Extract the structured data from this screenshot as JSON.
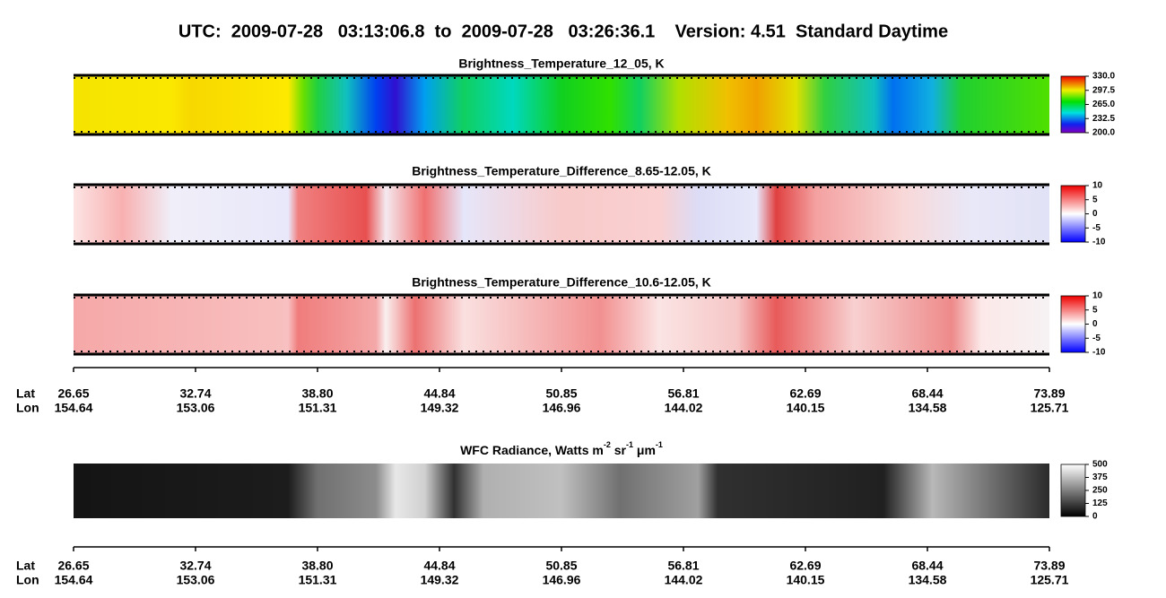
{
  "title": "UTC:  2009-07-28   03:13:06.8  to  2009-07-28   03:26:36.1    Version: 4.51  Standard Daytime",
  "panels": [
    {
      "title": "Brightness_Temperature_12_05, K",
      "colorbar": {
        "lim": [
          200,
          330
        ],
        "ticks": [
          {
            "value": 330,
            "label": "330.0"
          },
          {
            "value": 297.5,
            "label": "297.5"
          },
          {
            "value": 265,
            "label": "265.0"
          },
          {
            "value": 232.5,
            "label": "232.5"
          },
          {
            "value": 200,
            "label": "200.0"
          }
        ]
      }
    },
    {
      "title": "Brightness_Temperature_Difference_8.65-12.05, K",
      "colorbar": {
        "lim": [
          -10,
          10
        ],
        "ticks": [
          10,
          5,
          0,
          -5,
          -10
        ]
      }
    },
    {
      "title": "Brightness_Temperature_Difference_10.6-12.05, K",
      "colorbar": {
        "lim": [
          -10,
          10
        ],
        "ticks": [
          10,
          5,
          0,
          -5,
          -10
        ]
      }
    },
    {
      "title_parts": [
        "WFC Radiance, Watts m",
        "-2",
        " sr",
        "-1",
        " μm",
        "-1"
      ],
      "colorbar": {
        "lim": [
          0,
          500
        ],
        "ticks": [
          500,
          375,
          250,
          125,
          0
        ]
      }
    }
  ],
  "axis": {
    "row_labels": [
      "Lat",
      "Lon"
    ],
    "lat": [
      "26.65",
      "32.74",
      "38.80",
      "44.84",
      "50.85",
      "56.81",
      "62.69",
      "68.44",
      "73.89"
    ],
    "lon": [
      "154.64",
      "153.06",
      "151.31",
      "149.32",
      "146.96",
      "144.02",
      "140.15",
      "134.58",
      "125.71"
    ]
  }
}
